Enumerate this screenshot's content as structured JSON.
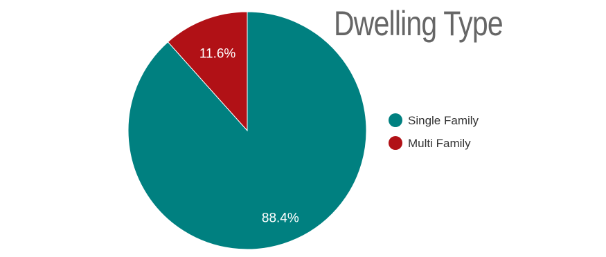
{
  "chart_data": {
    "type": "pie",
    "title": "Dwelling Type",
    "legend_position": "right",
    "slices": [
      {
        "label": "Single Family",
        "value": 88.4,
        "display": "88.4%",
        "color": "#008080"
      },
      {
        "label": "Multi Family",
        "value": 11.6,
        "display": "11.6%",
        "color": "#b11116"
      }
    ]
  }
}
